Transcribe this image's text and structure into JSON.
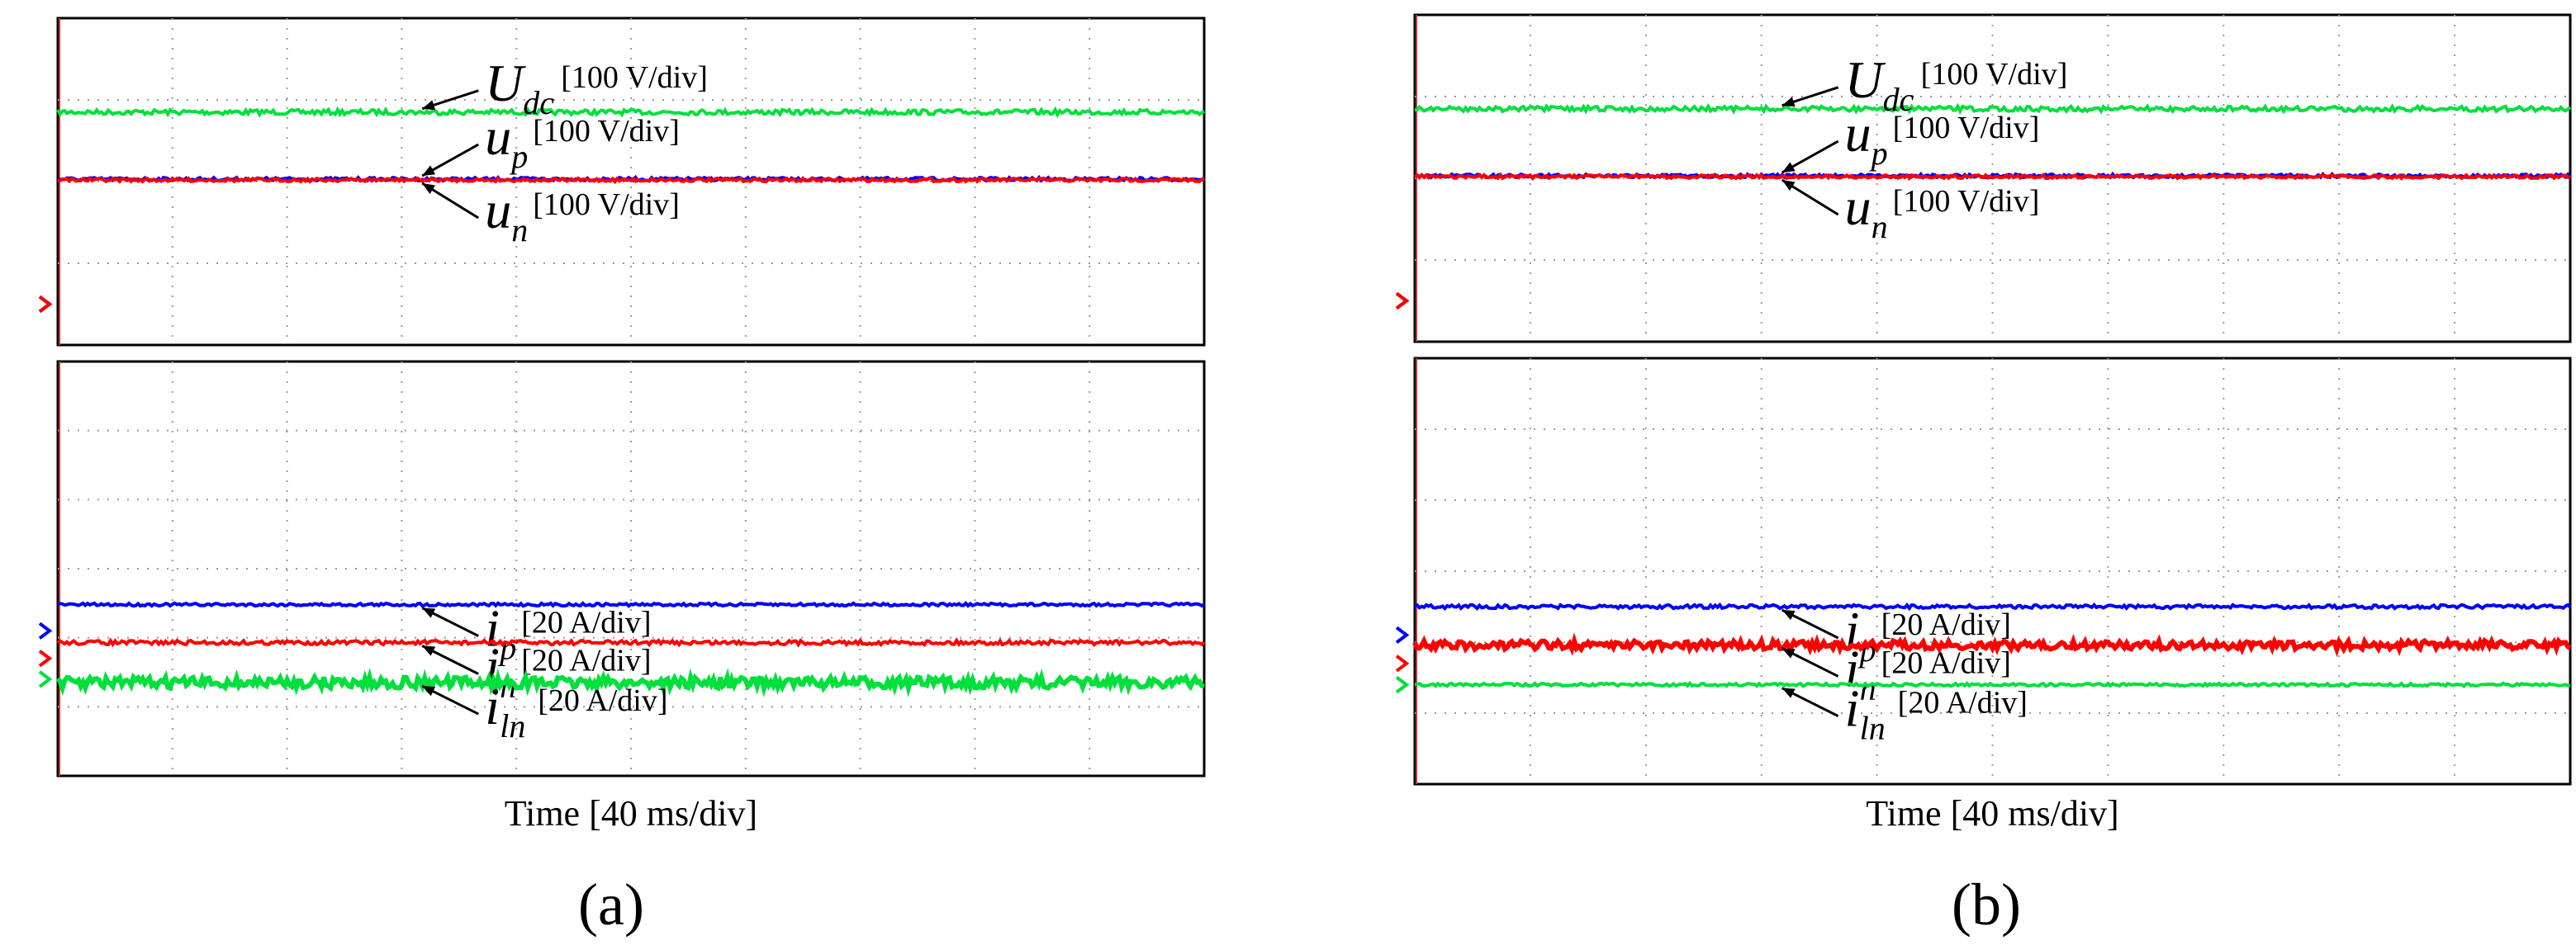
{
  "chart_data": [
    {
      "type": "line",
      "panel_label": "(a)",
      "xlabel": "Time [40 ms/div]",
      "x_range": [
        0,
        400
      ],
      "x_unit": "ms",
      "channels": [
        {
          "key": "Udc",
          "name": "U",
          "sub": "dc",
          "scale": "[100 V/div]",
          "color": "#00e03c",
          "section": "top",
          "level_div": 2.85,
          "noise_div": 0.03,
          "marker_div": 0.5
        },
        {
          "key": "up",
          "name": "u",
          "sub": "p",
          "scale": "[100 V/div]",
          "color": "#0000ff",
          "section": "top",
          "level_div": 2.03,
          "noise_div": 0.02,
          "marker_div": 0.5
        },
        {
          "key": "un",
          "name": "u",
          "sub": "n",
          "scale": "[100 V/div]",
          "color": "#ff0000",
          "section": "top",
          "level_div": 2.02,
          "noise_div": 0.02,
          "marker_div": 0.5
        },
        {
          "key": "ip",
          "name": "i",
          "sub": "p",
          "scale": "[20 A/div]",
          "color": "#0000ff",
          "section": "bottom",
          "level_div": 2.48,
          "noise_div": 0.02,
          "marker_div": 2.1
        },
        {
          "key": "in",
          "name": "i",
          "sub": "n",
          "scale": "[20 A/div]",
          "color": "#ff0000",
          "section": "bottom",
          "level_div": 1.93,
          "noise_div": 0.03,
          "marker_div": 1.7
        },
        {
          "key": "iln",
          "name": "i",
          "sub": "ln",
          "scale": "[20 A/div]",
          "color": "#00e03c",
          "section": "bottom",
          "level_div": 1.35,
          "noise_div": 0.08,
          "marker_div": 1.4
        }
      ],
      "grid": true,
      "divisions": {
        "x": 10,
        "y_top": 4,
        "y_bottom": 6
      }
    },
    {
      "type": "line",
      "panel_label": "(b)",
      "xlabel": "Time [40 ms/div]",
      "x_range": [
        0,
        400
      ],
      "x_unit": "ms",
      "channels": [
        {
          "key": "Udc",
          "name": "U",
          "sub": "dc",
          "scale": "[100 V/div]",
          "color": "#00e03c",
          "section": "top",
          "level_div": 2.85,
          "noise_div": 0.03,
          "marker_div": 0.5
        },
        {
          "key": "up",
          "name": "u",
          "sub": "p",
          "scale": "[100 V/div]",
          "color": "#0000ff",
          "section": "top",
          "level_div": 2.03,
          "noise_div": 0.02,
          "marker_div": 0.5
        },
        {
          "key": "un",
          "name": "u",
          "sub": "n",
          "scale": "[100 V/div]",
          "color": "#ff0000",
          "section": "top",
          "level_div": 2.02,
          "noise_div": 0.02,
          "marker_div": 0.5
        },
        {
          "key": "ip",
          "name": "i",
          "sub": "p",
          "scale": "[20 A/div]",
          "color": "#0000ff",
          "section": "bottom",
          "level_div": 2.5,
          "noise_div": 0.025,
          "marker_div": 2.1
        },
        {
          "key": "in",
          "name": "i",
          "sub": "n",
          "scale": "[20 A/div]",
          "color": "#ff0000",
          "section": "bottom",
          "level_div": 1.96,
          "noise_div": 0.06,
          "marker_div": 1.7
        },
        {
          "key": "iln",
          "name": "i",
          "sub": "ln",
          "scale": "[20 A/div]",
          "color": "#00e03c",
          "section": "bottom",
          "level_div": 1.4,
          "noise_div": 0.02,
          "marker_div": 1.4
        }
      ],
      "grid": true,
      "divisions": {
        "x": 10,
        "y_top": 4,
        "y_bottom": 6
      }
    }
  ]
}
